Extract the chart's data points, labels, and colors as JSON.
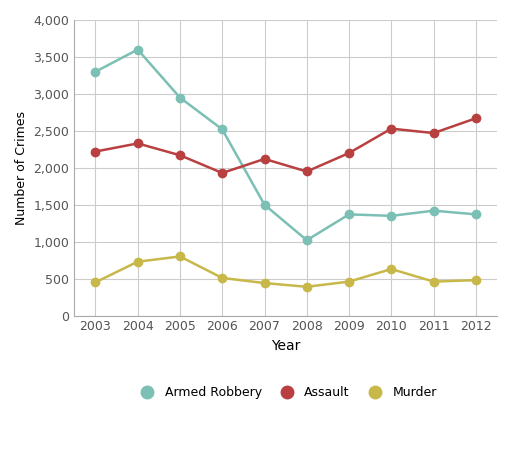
{
  "years": [
    2003,
    2004,
    2005,
    2006,
    2007,
    2008,
    2009,
    2010,
    2011,
    2012
  ],
  "armed_robbery": [
    3300,
    3600,
    2950,
    2520,
    1500,
    1020,
    1370,
    1350,
    1420,
    1370
  ],
  "assault": [
    2220,
    2330,
    2170,
    1930,
    2120,
    1950,
    2200,
    2530,
    2470,
    2670
  ],
  "murder": [
    450,
    730,
    800,
    510,
    440,
    390,
    460,
    630,
    460,
    480
  ],
  "armed_robbery_color": "#7bbfb5",
  "assault_color": "#b94040",
  "murder_color": "#c8b84a",
  "xlabel": "Year",
  "ylabel": "Number of Crimes",
  "ylim": [
    0,
    4000
  ],
  "yticks": [
    0,
    500,
    1000,
    1500,
    2000,
    2500,
    3000,
    3500,
    4000
  ],
  "background_color": "#ffffff",
  "grid_color": "#cccccc",
  "legend_labels": [
    "Armed Robbery",
    "Assault",
    "Murder"
  ],
  "marker_size": 6,
  "line_width": 1.8
}
